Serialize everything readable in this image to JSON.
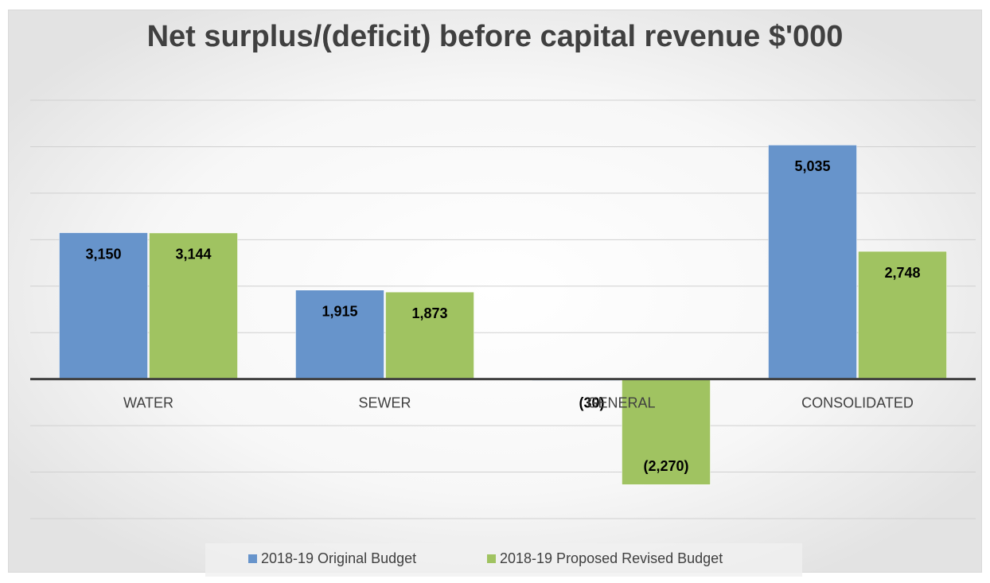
{
  "chart_data": {
    "type": "bar",
    "title": "Net surplus/(deficit) before capital revenue $'000",
    "categories": [
      "WATER",
      "SEWER",
      "GENERAL",
      "CONSOLIDATED"
    ],
    "series": [
      {
        "name": "2018-19 Original Budget",
        "color": "#6794cb",
        "values": [
          3150,
          1915,
          -30,
          5035
        ],
        "value_labels": [
          "3,150",
          "1,915",
          "(30)",
          "5,035"
        ]
      },
      {
        "name": "2018-19 Proposed Revised Budget",
        "color": "#a0c361",
        "values": [
          3144,
          1873,
          -2270,
          2748
        ],
        "value_labels": [
          "3,144",
          "1,873",
          "(2,270)",
          "2,748"
        ]
      }
    ],
    "ylim": [
      -3000,
      6000
    ],
    "yticks": [
      -3000,
      -2000,
      -1000,
      0,
      1000,
      2000,
      3000,
      4000,
      5000,
      6000
    ],
    "grid": true,
    "legend": "bottom"
  }
}
